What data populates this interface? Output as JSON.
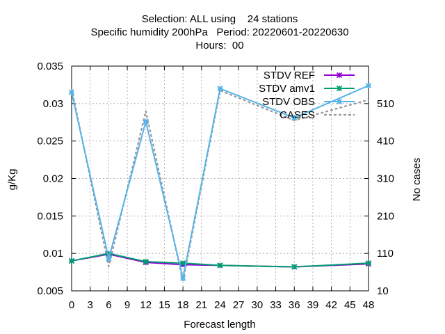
{
  "chart_data": {
    "type": "line",
    "title_lines": [
      "Selection: ALL using    24 stations",
      "Specific humidity 200hPa   Period: 20220601-20220630",
      "Hours:  00"
    ],
    "xlabel": "Forecast length",
    "ylabel": "g/Kg",
    "y2label": "No cases",
    "xlim": [
      0,
      48
    ],
    "ylim": [
      0.005,
      0.035
    ],
    "y2lim": [
      10,
      610
    ],
    "x_ticks": [
      0,
      3,
      6,
      9,
      12,
      15,
      18,
      21,
      24,
      27,
      30,
      33,
      36,
      39,
      42,
      45,
      48
    ],
    "y_ticks": [
      "0.005",
      "0.01",
      "0.015",
      "0.02",
      "0.025",
      "0.03",
      "0.035"
    ],
    "y2_ticks": [
      10,
      110,
      210,
      310,
      410,
      510
    ],
    "grid": true,
    "legend_position": "top-right",
    "series": [
      {
        "name": "STDV REF",
        "color": "#9400d3",
        "x": [
          0,
          6,
          12,
          18,
          24,
          36,
          48
        ],
        "values": [
          0.009,
          0.0099,
          0.0088,
          0.0085,
          0.0084,
          0.0082,
          0.0086
        ]
      },
      {
        "name": "STDV amv1",
        "color": "#009e73",
        "x": [
          0,
          6,
          12,
          18,
          24,
          36,
          48
        ],
        "values": [
          0.009,
          0.01,
          0.0089,
          0.0087,
          0.0084,
          0.0082,
          0.0087
        ]
      },
      {
        "name": "STDV OBS",
        "color": "#56b4e9",
        "x": [
          0,
          6,
          12,
          18,
          24,
          36,
          48
        ],
        "values": [
          0.0315,
          0.0093,
          0.0276,
          0.0067,
          0.032,
          0.0281,
          0.0324
        ]
      },
      {
        "name": "CASES",
        "color": "#999999",
        "axis": "y2",
        "x": [
          0,
          6,
          12,
          18,
          24,
          36,
          48
        ],
        "values": [
          550,
          75,
          490,
          35,
          545,
          465,
          520
        ]
      }
    ]
  }
}
